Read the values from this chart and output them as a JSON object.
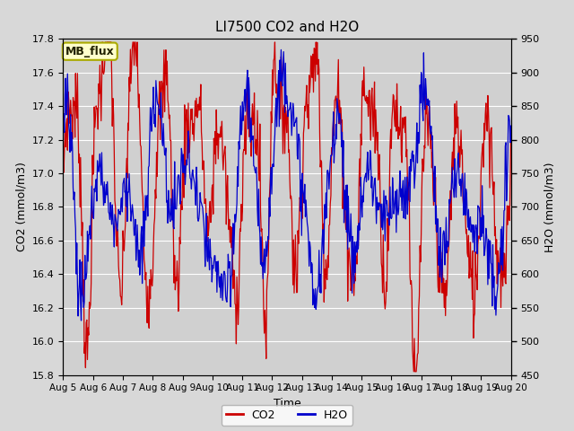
{
  "title": "LI7500 CO2 and H2O",
  "xlabel": "Time",
  "ylabel_left": "CO2 (mmol/m3)",
  "ylabel_right": "H2O (mmol/m3)",
  "co2_ylim": [
    15.8,
    17.8
  ],
  "h2o_ylim": [
    450,
    950
  ],
  "co2_color": "#cc0000",
  "h2o_color": "#0000cc",
  "bg_color": "#d8d8d8",
  "plot_bg_color": "#d0d0d0",
  "annotation_text": "MB_flux",
  "annotation_bg": "#ffffcc",
  "annotation_edge": "#aaaa00",
  "x_tick_labels": [
    "Aug 5",
    "Aug 6",
    "Aug 7",
    "Aug 8",
    "Aug 9",
    "Aug 10",
    "Aug 11",
    "Aug 12",
    "Aug 13",
    "Aug 14",
    "Aug 15",
    "Aug 16",
    "Aug 17",
    "Aug 18",
    "Aug 19",
    "Aug 20"
  ],
  "n_days": 15,
  "seed": 7
}
